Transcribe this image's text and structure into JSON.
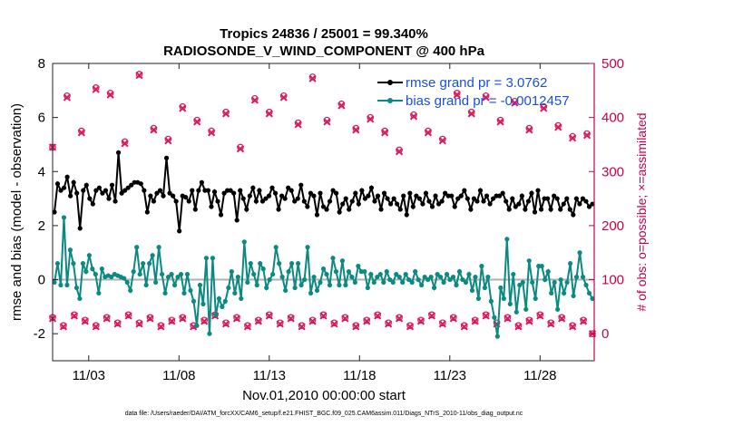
{
  "chart_data": {
    "type": "line",
    "title": "Tropics 24836 / 25001 = 99.340%",
    "subtitle": "RADIOSONDE_V_WIND_COMPONENT @ 400 hPa",
    "xlabel": "Nov.01,2010 00:00:00 start",
    "ylabel": "rmse and bias (model - observation)",
    "ylabel_right": "# of obs: o=possible; ×=assimilated",
    "footnote": "data file: /Users/raeder/DAI/ATM_forcXX/CAM6_setup/f.e21.FHIST_BGC.f09_025.CAM6assim.011/Diags_NTrS_2010-11/obs_diag_output.nc",
    "xlim": [
      0.5,
      30.5
    ],
    "ylim": [
      -3,
      8
    ],
    "ylim_right": [
      -50,
      500
    ],
    "xticks": [
      2.5,
      7.5,
      12.5,
      17.5,
      22.5,
      27.5
    ],
    "xticklabels": [
      "11/03",
      "11/08",
      "11/13",
      "11/18",
      "11/23",
      "11/28"
    ],
    "yticks": [
      -2,
      0,
      2,
      4,
      6,
      8
    ],
    "yticks_right": [
      0,
      100,
      200,
      300,
      400,
      500
    ],
    "legend_position": "top-right",
    "colors": {
      "rmse": "#000000",
      "bias": "#0a8a80",
      "obs": "#d81b60",
      "legend_text": "#1a4fe0",
      "right_axis": "#c8004e",
      "zero_line": "#b0b0b0"
    },
    "series": [
      {
        "name": "rmse grand pr = 3.0762",
        "key": "rmse",
        "values": [
          2.5,
          3.55,
          3.3,
          3.4,
          3.8,
          3.1,
          3.6,
          3.2,
          1.9,
          3.3,
          3.5,
          3.0,
          2.8,
          3.3,
          3.4,
          3.2,
          3.3,
          3.0,
          3.5,
          2.9,
          4.7,
          3.2,
          3.3,
          3.4,
          3.5,
          3.6,
          3.6,
          3.55,
          3.3,
          2.5,
          3.1,
          2.9,
          3.2,
          3.3,
          3.1,
          4.5,
          3.2,
          3.1,
          2.9,
          1.8,
          3.1,
          3.05,
          2.9,
          3.3,
          2.6,
          3.3,
          3.6,
          3.3,
          3.3,
          2.7,
          3.25,
          2.9,
          2.4,
          3.2,
          3.3,
          3.3,
          3.2,
          2.2,
          3.3,
          3.0,
          2.6,
          3.1,
          3.4,
          2.9,
          3.3,
          2.9,
          3.0,
          3.1,
          3.4,
          3.2,
          2.6,
          3.1,
          3.0,
          3.4,
          3.3,
          2.9,
          3.0,
          3.5,
          2.9,
          2.7,
          3.2,
          3.1,
          2.4,
          3.2,
          2.7,
          2.6,
          2.9,
          3.3,
          3.2,
          2.5,
          2.8,
          3.0,
          2.6,
          2.9,
          3.2,
          2.8,
          3.3,
          3.0,
          3.1,
          3.4,
          2.9,
          3.1,
          2.6,
          3.2,
          3.0,
          2.8,
          3.0,
          2.8,
          2.6,
          3.1,
          2.4,
          3.2,
          2.7,
          3.1,
          3.0,
          2.8,
          3.2,
          2.9,
          2.7,
          3.1,
          2.8,
          2.9,
          3.2,
          3.1,
          3.1,
          2.7,
          3.0,
          3.1,
          3.3,
          3.0,
          2.6,
          3.0,
          2.9,
          3.3,
          2.9,
          3.1,
          2.8,
          3.0,
          3.1,
          3.1,
          3.2,
          2.9,
          2.6,
          3.0,
          2.7,
          2.8,
          3.1,
          2.6,
          2.9,
          3.2,
          2.5,
          3.3,
          2.6,
          3.0,
          3.0,
          2.6,
          3.1,
          3.0,
          2.6,
          2.8,
          3.0,
          2.6,
          2.4,
          3.0,
          2.8,
          3.0,
          2.9,
          2.7,
          2.8
        ]
      },
      {
        "name": "bias grand pr = -0.0012457",
        "key": "bias",
        "values": [
          -0.1,
          0.6,
          -0.2,
          2.3,
          -0.2,
          1.1,
          0.6,
          -0.3,
          -0.7,
          0.6,
          0.3,
          0.9,
          0.4,
          0.2,
          -0.5,
          0.4,
          0.1,
          0.15,
          0.1,
          0.2,
          0.15,
          0.1,
          0.05,
          -0.1,
          -0.4,
          0.3,
          1.2,
          0.2,
          0.6,
          -0.2,
          0.6,
          0.9,
          -0.1,
          1.2,
          0.2,
          -0.5,
          0.1,
          0.2,
          -0.2,
          0.1,
          0.2,
          -0.5,
          0.2,
          -0.4,
          -0.8,
          -1.7,
          -0.2,
          -0.9,
          0.8,
          -2.0,
          0.8,
          -1.3,
          -0.7,
          -1.0,
          -0.8,
          -0.3,
          0.3,
          -0.5,
          0.1,
          -0.7,
          1.4,
          -0.1,
          0.6,
          0.2,
          -0.2,
          0.6,
          0.4,
          -0.3,
          0.0,
          0.2,
          1.2,
          0.6,
          0.1,
          -0.4,
          0.3,
          0.6,
          -0.3,
          0.6,
          -0.2,
          0.0,
          1.2,
          -0.5,
          0.1,
          -0.4,
          -0.1,
          0.4,
          0.2,
          -0.2,
          0.8,
          0.3,
          -0.2,
          0.7,
          -0.2,
          0.3,
          0.1,
          -0.1,
          0.5,
          0.3,
          0.3,
          -0.3,
          0.2,
          -0.1,
          0.1,
          0.2,
          -0.1,
          0.3,
          0.0,
          -0.1,
          0.2,
          0.1,
          -0.1,
          0.2,
          0.0,
          -0.1,
          0.3,
          0.0,
          -0.2,
          0.1,
          0.0,
          0.1,
          -0.3,
          0.2,
          0.1,
          -0.1,
          0.2,
          0.0,
          0.1,
          -0.2,
          0.3,
          0.0,
          -0.1,
          0.2,
          -0.4,
          0.1,
          -0.7,
          0.5,
          -0.3,
          0.1,
          -0.8,
          -1.4,
          -2.1,
          -0.3,
          -0.7,
          1.5,
          -0.9,
          0.2,
          -1.2,
          -0.2,
          -0.1,
          -1.1,
          0.7,
          -0.1,
          -0.7,
          0.5,
          0.5,
          0.0,
          0.3,
          -0.5,
          -0.1,
          -1.1,
          0.0,
          -0.5,
          -0.1,
          0.6,
          -0.6,
          0.1,
          1.0,
          0.1,
          -0.2,
          -0.5,
          -0.7
        ]
      }
    ],
    "obs_possible_upper": [
      [
        0.5,
        345
      ],
      [
        1.3,
        440
      ],
      [
        2.1,
        375
      ],
      [
        2.9,
        455
      ],
      [
        3.7,
        445
      ],
      [
        4.5,
        355
      ],
      [
        5.3,
        480
      ],
      [
        6.1,
        380
      ],
      [
        6.9,
        360
      ],
      [
        7.7,
        420
      ],
      [
        8.5,
        395
      ],
      [
        9.3,
        375
      ],
      [
        10.1,
        410
      ],
      [
        10.9,
        345
      ],
      [
        11.7,
        435
      ],
      [
        12.5,
        410
      ],
      [
        13.3,
        440
      ],
      [
        14.1,
        390
      ],
      [
        14.9,
        475
      ],
      [
        15.7,
        395
      ],
      [
        16.5,
        425
      ],
      [
        17.3,
        380
      ],
      [
        18.1,
        400
      ],
      [
        18.9,
        375
      ],
      [
        19.7,
        340
      ],
      [
        20.5,
        405
      ],
      [
        21.3,
        375
      ],
      [
        22.1,
        360
      ],
      [
        22.9,
        445
      ],
      [
        23.7,
        410
      ],
      [
        24.5,
        440
      ],
      [
        25.3,
        395
      ],
      [
        26.1,
        430
      ],
      [
        26.9,
        380
      ],
      [
        27.7,
        420
      ],
      [
        28.5,
        385
      ],
      [
        29.3,
        365
      ],
      [
        30.1,
        370
      ]
    ],
    "obs_assimilated_upper": [
      [
        0.5,
        345
      ],
      [
        1.3,
        437
      ],
      [
        2.1,
        372
      ],
      [
        2.9,
        452
      ],
      [
        3.7,
        442
      ],
      [
        4.5,
        352
      ],
      [
        5.3,
        478
      ],
      [
        6.1,
        377
      ],
      [
        6.9,
        357
      ],
      [
        7.7,
        417
      ],
      [
        8.5,
        392
      ],
      [
        9.3,
        372
      ],
      [
        10.1,
        407
      ],
      [
        10.9,
        342
      ],
      [
        11.7,
        432
      ],
      [
        12.5,
        407
      ],
      [
        13.3,
        437
      ],
      [
        14.1,
        387
      ],
      [
        14.9,
        472
      ],
      [
        15.7,
        392
      ],
      [
        16.5,
        422
      ],
      [
        17.3,
        377
      ],
      [
        18.1,
        397
      ],
      [
        18.9,
        372
      ],
      [
        19.7,
        337
      ],
      [
        20.5,
        402
      ],
      [
        21.3,
        372
      ],
      [
        22.1,
        357
      ],
      [
        22.9,
        442
      ],
      [
        23.7,
        407
      ],
      [
        24.5,
        437
      ],
      [
        25.3,
        392
      ],
      [
        26.1,
        427
      ],
      [
        26.9,
        377
      ],
      [
        27.7,
        417
      ],
      [
        28.5,
        382
      ],
      [
        29.3,
        362
      ],
      [
        30.1,
        367
      ]
    ],
    "obs_possible_lower": [
      [
        0.5,
        30
      ],
      [
        1.1,
        15
      ],
      [
        1.7,
        35
      ],
      [
        2.3,
        25
      ],
      [
        2.9,
        15
      ],
      [
        3.5,
        30
      ],
      [
        4.1,
        20
      ],
      [
        4.7,
        35
      ],
      [
        5.3,
        20
      ],
      [
        5.9,
        30
      ],
      [
        6.5,
        15
      ],
      [
        7.1,
        25
      ],
      [
        7.7,
        30
      ],
      [
        8.3,
        15
      ],
      [
        8.9,
        25
      ],
      [
        9.5,
        35
      ],
      [
        10.1,
        20
      ],
      [
        10.7,
        30
      ],
      [
        11.3,
        15
      ],
      [
        11.9,
        25
      ],
      [
        12.5,
        35
      ],
      [
        13.1,
        20
      ],
      [
        13.7,
        30
      ],
      [
        14.3,
        15
      ],
      [
        14.9,
        25
      ],
      [
        15.5,
        35
      ],
      [
        16.1,
        20
      ],
      [
        16.7,
        30
      ],
      [
        17.3,
        15
      ],
      [
        17.9,
        25
      ],
      [
        18.5,
        35
      ],
      [
        19.1,
        20
      ],
      [
        19.7,
        30
      ],
      [
        20.3,
        15
      ],
      [
        20.9,
        25
      ],
      [
        21.5,
        35
      ],
      [
        22.1,
        20
      ],
      [
        22.7,
        30
      ],
      [
        23.3,
        15
      ],
      [
        23.9,
        25
      ],
      [
        24.5,
        35
      ],
      [
        25.1,
        20
      ],
      [
        25.7,
        30
      ],
      [
        26.3,
        15
      ],
      [
        26.9,
        25
      ],
      [
        27.5,
        35
      ],
      [
        28.1,
        20
      ],
      [
        28.7,
        30
      ],
      [
        29.3,
        15
      ],
      [
        29.9,
        25
      ],
      [
        30.4,
        0
      ]
    ],
    "obs_assimilated_lower": [
      [
        0.5,
        28
      ],
      [
        1.1,
        13
      ],
      [
        1.7,
        33
      ],
      [
        2.3,
        23
      ],
      [
        2.9,
        13
      ],
      [
        3.5,
        28
      ],
      [
        4.1,
        18
      ],
      [
        4.7,
        33
      ],
      [
        5.3,
        18
      ],
      [
        5.9,
        28
      ],
      [
        6.5,
        13
      ],
      [
        7.1,
        23
      ],
      [
        7.7,
        28
      ],
      [
        8.3,
        13
      ],
      [
        8.9,
        23
      ],
      [
        9.5,
        33
      ],
      [
        10.1,
        18
      ],
      [
        10.7,
        28
      ],
      [
        11.3,
        13
      ],
      [
        11.9,
        23
      ],
      [
        12.5,
        33
      ],
      [
        13.1,
        18
      ],
      [
        13.7,
        28
      ],
      [
        14.3,
        13
      ],
      [
        14.9,
        23
      ],
      [
        15.5,
        33
      ],
      [
        16.1,
        18
      ],
      [
        16.7,
        28
      ],
      [
        17.3,
        13
      ],
      [
        17.9,
        23
      ],
      [
        18.5,
        33
      ],
      [
        19.1,
        18
      ],
      [
        19.7,
        28
      ],
      [
        20.3,
        13
      ],
      [
        20.9,
        23
      ],
      [
        21.5,
        33
      ],
      [
        22.1,
        18
      ],
      [
        22.7,
        28
      ],
      [
        23.3,
        13
      ],
      [
        23.9,
        23
      ],
      [
        24.5,
        33
      ],
      [
        25.1,
        18
      ],
      [
        25.7,
        28
      ],
      [
        26.3,
        13
      ],
      [
        26.9,
        23
      ],
      [
        27.5,
        33
      ],
      [
        28.1,
        18
      ],
      [
        28.7,
        28
      ],
      [
        29.3,
        13
      ],
      [
        29.9,
        23
      ],
      [
        30.4,
        0
      ]
    ]
  }
}
